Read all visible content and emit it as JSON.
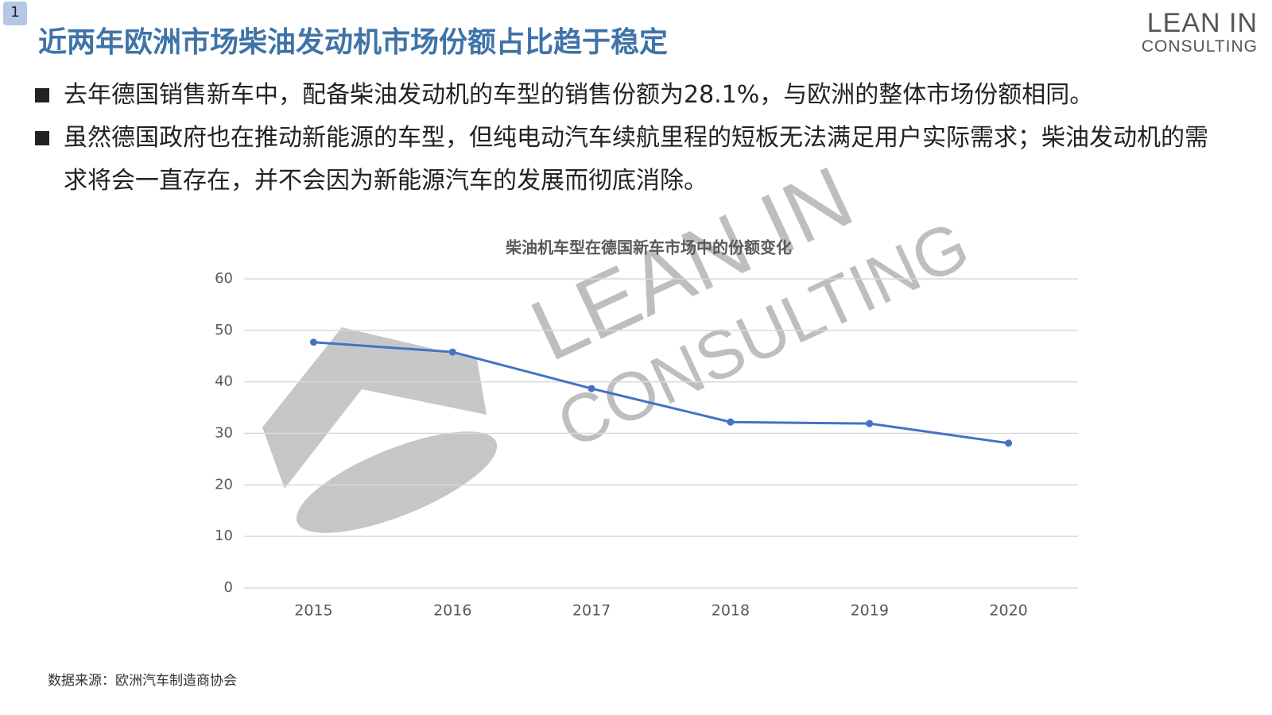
{
  "slide_number": "1",
  "title": "近两年欧洲市场柴油发动机市场份额占比趋于稳定",
  "logo": {
    "line1": "LEAN IN",
    "line2": "CONSULTING"
  },
  "bullets": [
    "去年德国销售新车中，配备柴油发动机的车型的销售份额为28.1%，与欧洲的整体市场份额相同。",
    "虽然德国政府也在推动新能源的车型，但纯电动汽车续航里程的短板无法满足用户实际需求；柴油发动机的需求将会一直存在，并不会因为新能源汽车的发展而彻底消除。"
  ],
  "source": "数据来源：欧洲汽车制造商协会",
  "chart_data": {
    "type": "line",
    "title": "柴油机车型在德国新车市场中的份额变化",
    "categories": [
      "2015",
      "2016",
      "2017",
      "2018",
      "2019",
      "2020"
    ],
    "series": [
      {
        "name": "份额",
        "color": "#4472c4",
        "values": [
          47.7,
          45.8,
          38.7,
          32.2,
          31.9,
          28.1
        ]
      }
    ],
    "ylim": [
      0,
      60
    ],
    "yticks": [
      0,
      10,
      20,
      30,
      40,
      50,
      60
    ],
    "grid": true
  }
}
